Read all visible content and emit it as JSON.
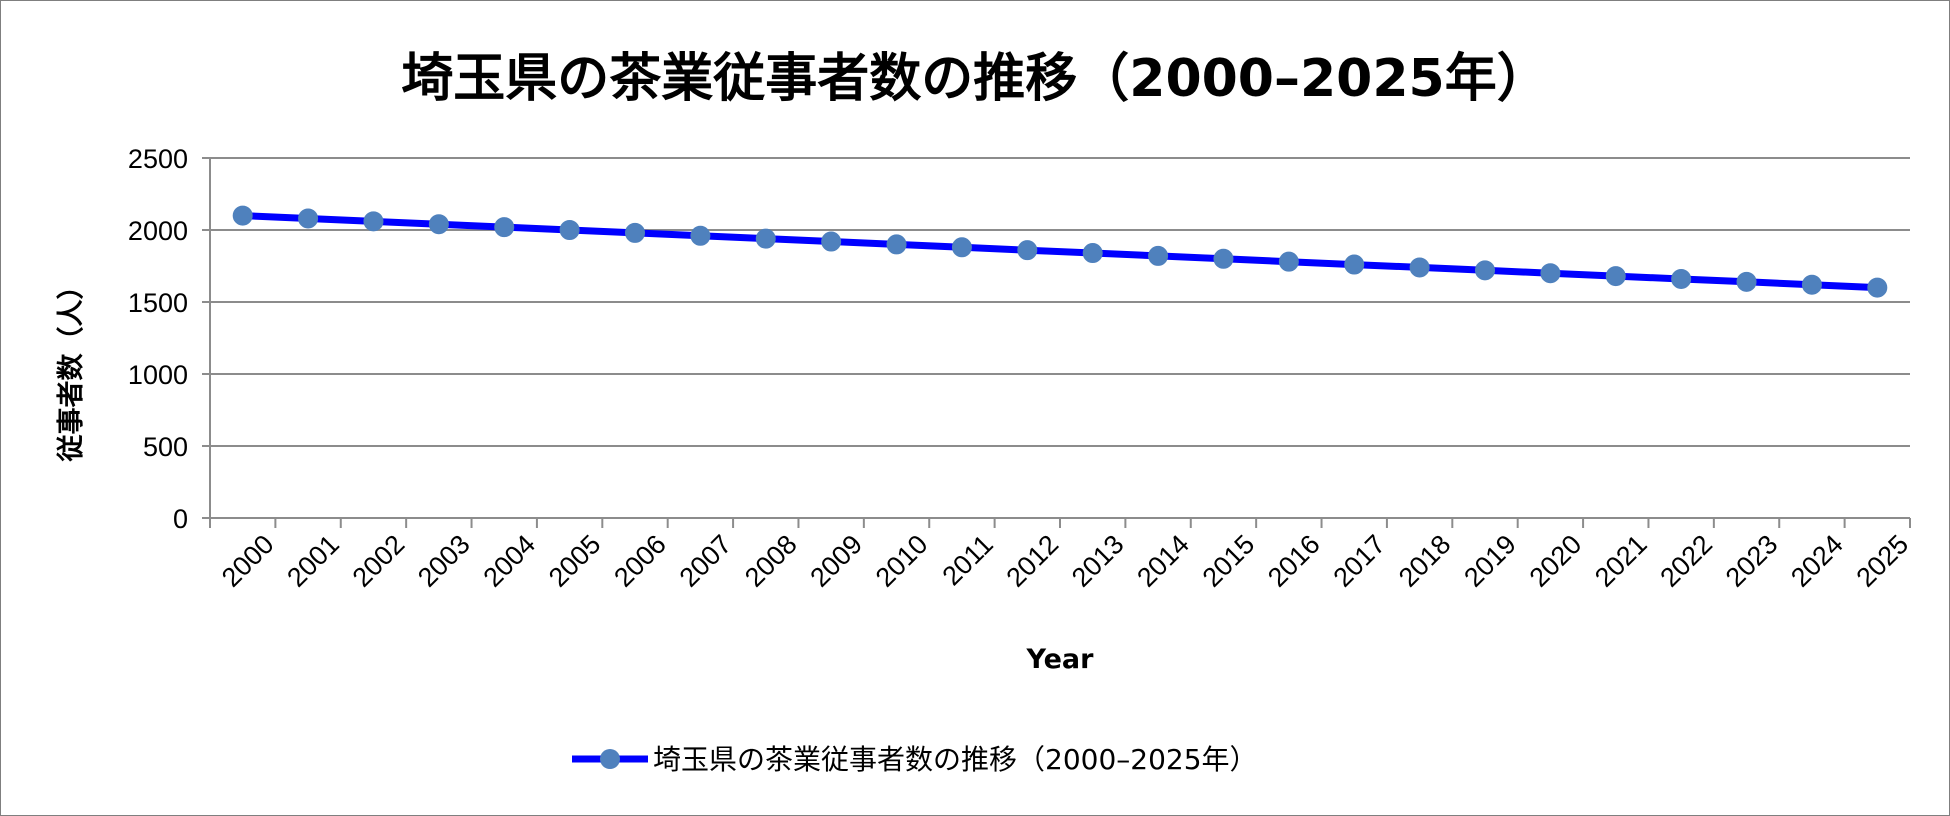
{
  "chart_data": {
    "type": "line",
    "title": "埼玉県の茶業従事者数の推移（2000–2025年）",
    "xlabel": "Year",
    "ylabel": "従事者数（人）",
    "ylim": [
      0,
      2500
    ],
    "yticks": [
      0,
      500,
      1000,
      1500,
      2000,
      2500
    ],
    "grid": true,
    "legend_position": "bottom",
    "categories": [
      "2000",
      "2001",
      "2002",
      "2003",
      "2004",
      "2005",
      "2006",
      "2007",
      "2008",
      "2009",
      "2010",
      "2011",
      "2012",
      "2013",
      "2014",
      "2015",
      "2016",
      "2017",
      "2018",
      "2019",
      "2020",
      "2021",
      "2022",
      "2023",
      "2024",
      "2025"
    ],
    "series": [
      {
        "name": "埼玉県の茶業従事者数の推移（2000–2025年）",
        "values": [
          2100,
          2080,
          2060,
          2040,
          2020,
          2000,
          1980,
          1960,
          1940,
          1920,
          1900,
          1880,
          1860,
          1840,
          1820,
          1800,
          1780,
          1760,
          1740,
          1720,
          1700,
          1680,
          1660,
          1640,
          1620,
          1600
        ],
        "line_color": "#0000ff",
        "marker_color": "#4f81bd"
      }
    ]
  },
  "colors": {
    "gridline": "#8c8c8c",
    "axis": "#8c8c8c"
  }
}
